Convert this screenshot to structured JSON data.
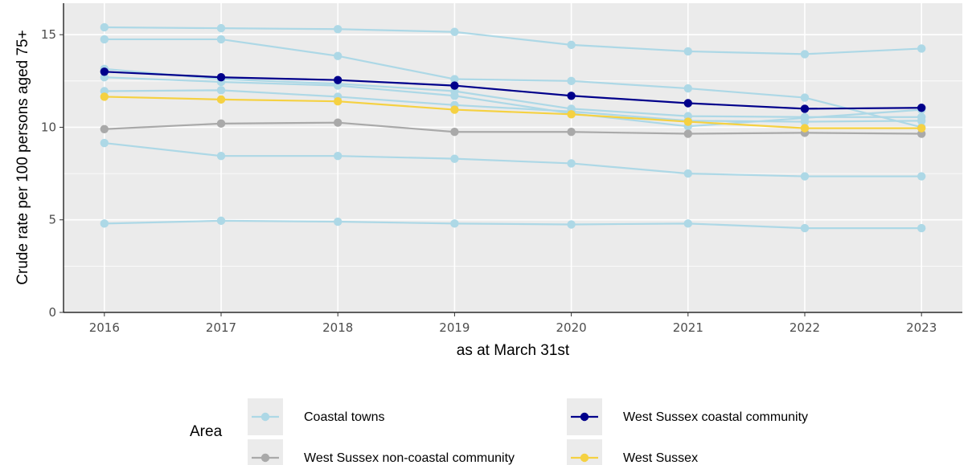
{
  "chart_data": {
    "type": "line",
    "xlabel": "as at March 31st",
    "ylabel": "Crude rate per 100 persons aged 75+",
    "x": [
      2016,
      2017,
      2018,
      2019,
      2020,
      2021,
      2022,
      2023
    ],
    "xlim": [
      2015.65,
      2023.35
    ],
    "ylim": [
      0,
      16.7
    ],
    "y_ticks": [
      0,
      5,
      10,
      15
    ],
    "grid": true,
    "legend_position": "bottom",
    "legend_title": "Area",
    "legend_entries": [
      {
        "label": "Coastal towns",
        "color": "#add8e6"
      },
      {
        "label": "West Sussex coastal community",
        "color": "#00008b"
      },
      {
        "label": "West Sussex non-coastal community",
        "color": "#a9a9a9"
      },
      {
        "label": "West Sussex",
        "color": "#f5d142"
      }
    ],
    "series": [
      {
        "group": "Coastal towns",
        "color": "#add8e6",
        "values": [
          15.4,
          15.35,
          15.3,
          15.15,
          14.45,
          14.1,
          13.95,
          14.25
        ]
      },
      {
        "group": "Coastal towns",
        "color": "#add8e6",
        "values": [
          14.75,
          14.75,
          13.85,
          12.6,
          12.5,
          12.1,
          11.6,
          10.0
        ]
      },
      {
        "group": "Coastal towns",
        "color": "#add8e6",
        "values": [
          13.15,
          12.6,
          12.35,
          11.95,
          11.0,
          10.6,
          10.55,
          10.55
        ]
      },
      {
        "group": "Coastal towns",
        "color": "#add8e6",
        "values": [
          12.7,
          12.45,
          12.25,
          11.7,
          10.75,
          10.05,
          10.5,
          10.95
        ]
      },
      {
        "group": "Coastal towns",
        "color": "#add8e6",
        "values": [
          11.95,
          12.0,
          11.65,
          11.2,
          10.85,
          10.35,
          10.3,
          10.35
        ]
      },
      {
        "group": "Coastal towns",
        "color": "#add8e6",
        "values": [
          9.15,
          8.45,
          8.45,
          8.3,
          8.05,
          7.5,
          7.35,
          7.35
        ]
      },
      {
        "group": "Coastal towns",
        "color": "#add8e6",
        "values": [
          4.8,
          4.95,
          4.9,
          4.8,
          4.75,
          4.8,
          4.55,
          4.55
        ]
      },
      {
        "group": "West Sussex non-coastal community",
        "color": "#a9a9a9",
        "values": [
          9.9,
          10.2,
          10.25,
          9.75,
          9.75,
          9.65,
          9.7,
          9.65
        ]
      },
      {
        "group": "West Sussex",
        "color": "#f5d142",
        "values": [
          11.65,
          11.5,
          11.4,
          10.95,
          10.7,
          10.3,
          9.95,
          9.95
        ]
      },
      {
        "group": "West Sussex coastal community",
        "color": "#00008b",
        "values": [
          13.0,
          12.7,
          12.55,
          12.25,
          11.7,
          11.3,
          11.0,
          11.05
        ]
      }
    ]
  }
}
